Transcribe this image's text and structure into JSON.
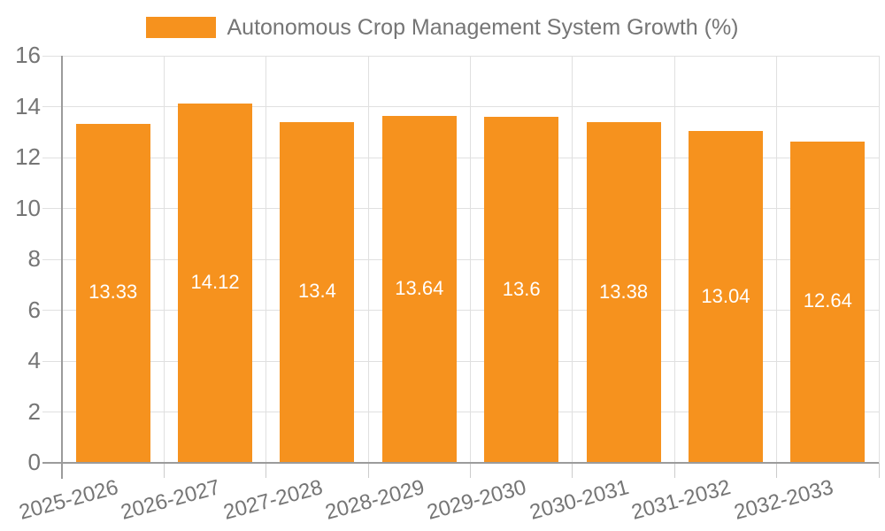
{
  "chart_data": {
    "type": "bar",
    "title": "Autonomous Crop Management System Growth (%)",
    "categories": [
      "2025-2026",
      "2026-2027",
      "2027-2028",
      "2028-2029",
      "2029-2030",
      "2030-2031",
      "2031-2032",
      "2032-2033"
    ],
    "values": [
      13.33,
      14.12,
      13.4,
      13.64,
      13.6,
      13.38,
      13.04,
      12.64
    ],
    "value_labels": [
      "13.33",
      "14.12",
      "13.4",
      "13.64",
      "13.6",
      "13.38",
      "13.04",
      "12.64"
    ],
    "xlabel": "",
    "ylabel": "",
    "ylim": [
      0,
      16
    ],
    "yticks": [
      0,
      2,
      4,
      6,
      8,
      10,
      12,
      14,
      16
    ],
    "grid": true,
    "legend_position": "top-center",
    "value_labels_inside_bars": true
  },
  "colors": {
    "bar": "#F6921E",
    "bar_value_text": "#FFFFFF",
    "grid_line": "#E0E0E0",
    "axis_line": "#9B9B9B",
    "minor_tick": "#CCCCCC",
    "tick_text": "#757575",
    "background": "#FFFFFF"
  }
}
